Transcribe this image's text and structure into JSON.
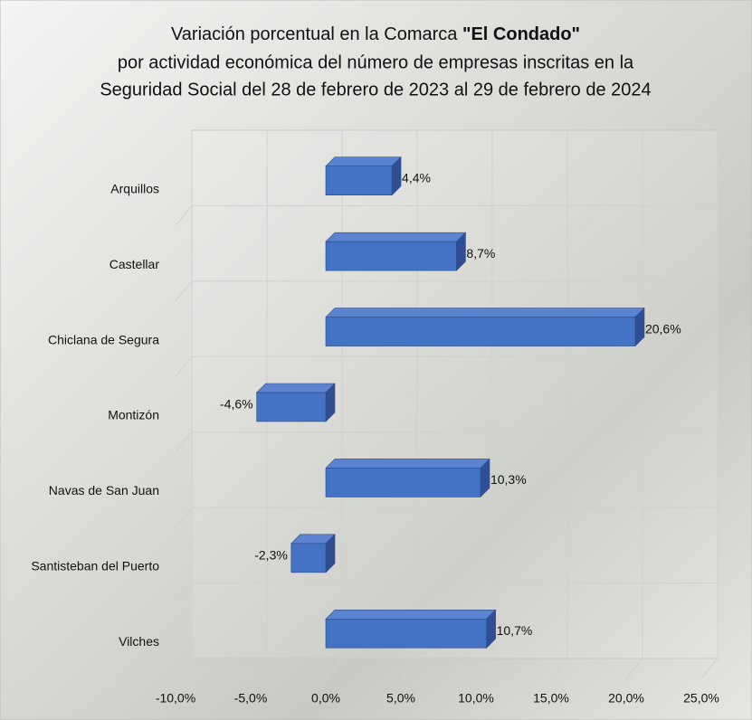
{
  "chart_data": {
    "type": "bar",
    "orientation": "horizontal",
    "title": [
      [
        "Variación porcentual en la Comarca",
        "\"El Condado\""
      ],
      "por actividad económica del número de empresas inscritas en la",
      "Seguridad Social del 28 de febrero de 2023 al 29 de febrero de 2024"
    ],
    "categories": [
      "Arquillos",
      "Castellar",
      "Chiclana de Segura",
      "Montizón",
      "Navas de San Juan",
      "Santisteban del Puerto",
      "Vilches"
    ],
    "values": [
      4.4,
      8.7,
      20.6,
      -4.6,
      10.3,
      -2.3,
      10.7
    ],
    "value_labels": [
      "4,4%",
      "8,7%",
      "20,6%",
      "-4,6%",
      "10,3%",
      "-2,3%",
      "10,7%"
    ],
    "color": "#4472c4",
    "xlim": [
      -10,
      25
    ],
    "xticks": [
      {
        "value": -10,
        "label": "-10,0%"
      },
      {
        "value": -5,
        "label": "-5,0%"
      },
      {
        "value": 0,
        "label": "0,0%"
      },
      {
        "value": 5,
        "label": "5,0%"
      },
      {
        "value": 10,
        "label": "10,0%"
      },
      {
        "value": 15,
        "label": "15,0%"
      },
      {
        "value": 20,
        "label": "20,0%"
      },
      {
        "value": 25,
        "label": "25,0%"
      }
    ],
    "grid": true
  }
}
